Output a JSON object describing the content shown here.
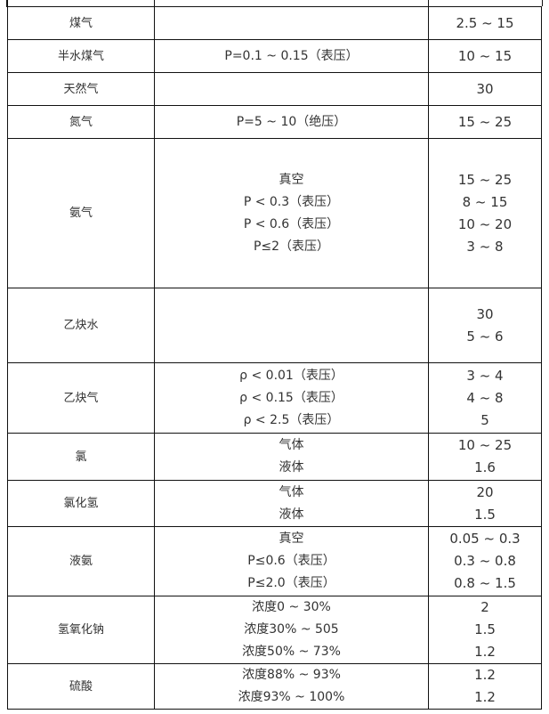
{
  "rows": [
    {
      "medium": "煤气",
      "conditions": [],
      "values": [
        "2.5 ~ 15"
      ]
    },
    {
      "medium": "半水煤气",
      "conditions": [
        "P=0.1 ~ 0.15（表压）"
      ],
      "values": [
        "10 ~ 15"
      ]
    },
    {
      "medium": "天然气",
      "conditions": [],
      "values": [
        "30"
      ]
    },
    {
      "medium": "氮气",
      "conditions": [
        "P=5 ~ 10（绝压）"
      ],
      "values": [
        "15 ~ 25"
      ]
    },
    {
      "medium": "氨气",
      "conditions": [
        "真空",
        "P < 0.3（表压）",
        "P < 0.6（表压）",
        "P≤2（表压）"
      ],
      "values": [
        "15 ~ 25",
        "8 ~ 15",
        "10 ~ 20",
        "3 ~ 8"
      ]
    },
    {
      "medium": "乙炔水",
      "conditions": [],
      "values": [
        "30",
        "5 ~ 6"
      ]
    },
    {
      "medium": "乙炔气",
      "conditions": [
        "ρ < 0.01（表压）",
        "ρ < 0.15（表压）",
        "ρ < 2.5（表压）"
      ],
      "values": [
        "3 ~ 4",
        "4 ~ 8",
        "5"
      ]
    },
    {
      "medium": "氯",
      "conditions": [
        "气体",
        "液体"
      ],
      "values": [
        "10 ~ 25",
        "1.6"
      ]
    },
    {
      "medium": "氯化氢",
      "conditions": [
        "气体",
        "液体"
      ],
      "values": [
        "20",
        "1.5"
      ]
    },
    {
      "medium": "液氨",
      "conditions": [
        "真空",
        "P≤0.6（表压）",
        "P≤2.0（表压）"
      ],
      "values": [
        "0.05 ~ 0.3",
        "0.3 ~ 0.8",
        "0.8 ~ 1.5"
      ]
    },
    {
      "medium": "氢氧化钠",
      "conditions": [
        "浓度0 ~ 30%",
        "浓度30% ~ 505",
        "浓度50% ~ 73%"
      ],
      "values": [
        "2",
        "1.5",
        "1.2"
      ]
    },
    {
      "medium": "硫酸",
      "conditions": [
        "浓度88% ~ 93%",
        "浓度93% ~ 100%"
      ],
      "values": [
        "1.2",
        "1.2"
      ]
    }
  ]
}
